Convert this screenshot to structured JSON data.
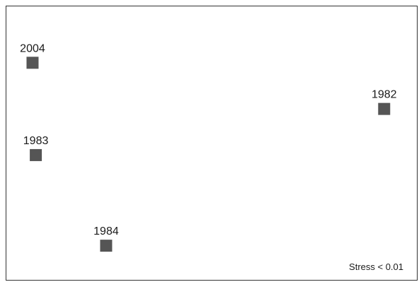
{
  "chart_data": {
    "type": "scatter",
    "title": "",
    "xlabel": "",
    "ylabel": "",
    "points": [
      {
        "label": "2004",
        "x": -0.95,
        "y": 0.72
      },
      {
        "label": "1983",
        "x": -0.93,
        "y": 0.18
      },
      {
        "label": "1984",
        "x": -0.5,
        "y": -0.35
      },
      {
        "label": "1982",
        "x": 1.2,
        "y": 0.45
      }
    ],
    "xlim": [
      -1.11,
      1.4
    ],
    "ylim": [
      -0.55,
      1.05
    ],
    "grid": false,
    "axes_ticks": false,
    "marker": "square",
    "marker_color": "#555555",
    "annotation": "Stress < 0.01"
  }
}
